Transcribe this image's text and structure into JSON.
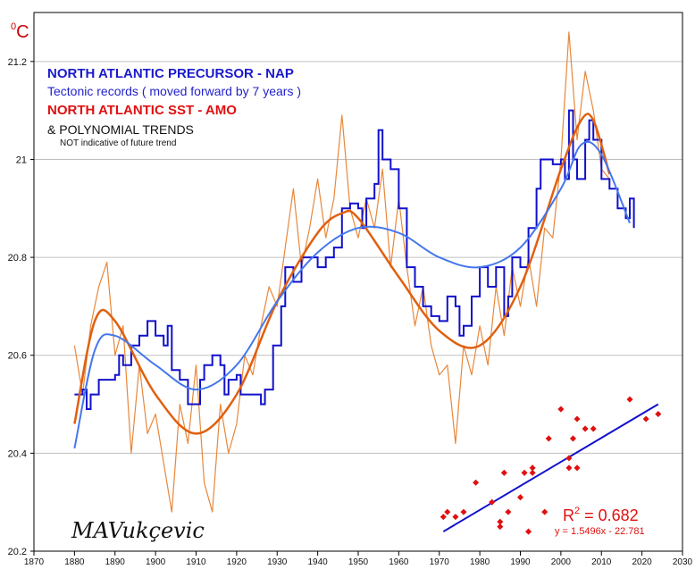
{
  "unit_label": {
    "sup": "0",
    "main": "C"
  },
  "legend": {
    "nap_title": "NORTH ATLANTIC PRECURSOR - NAP",
    "nap_subtitle": "Tectonic records ( moved forward by 7 years )",
    "amo_title": "NORTH ATLANTIC SST - AMO",
    "trends": "& POLYNOMIAL TRENDS",
    "trends_note": "NOT indicative of future trend"
  },
  "signature": "MAVukçevic",
  "regression": {
    "r2_prefix": "R",
    "r2_sup": "2",
    "r2_value": " = 0.682",
    "equation": "y = 1.5496x - 22.781"
  },
  "colors": {
    "nap": "#1010cc",
    "nap_trend": "#4477ee",
    "amo": "#e8873a",
    "amo_trend": "#e06010",
    "scatter": "#e01010",
    "fit_line": "#1010cc",
    "grid": "#c0c0c0"
  },
  "chart_data": {
    "type": "line",
    "xlim": [
      1870,
      2030
    ],
    "ylim": [
      20.2,
      21.3
    ],
    "grid": true,
    "x_ticks": [
      1870,
      1880,
      1890,
      1900,
      1910,
      1920,
      1930,
      1940,
      1950,
      1960,
      1970,
      1980,
      1990,
      2000,
      2010,
      2020,
      2030
    ],
    "y_ticks": [
      20.2,
      20.4,
      20.6,
      20.8,
      21.0,
      21.2
    ],
    "y_tick_labels": [
      "20.2",
      "20.4",
      "20.6",
      "20.8",
      "21",
      "21.2"
    ],
    "series": [
      {
        "name": "NORTH ATLANTIC PRECURSOR - NAP",
        "style": "step-line",
        "points": [
          [
            1880,
            20.52
          ],
          [
            1882,
            20.53
          ],
          [
            1883,
            20.49
          ],
          [
            1884,
            20.52
          ],
          [
            1886,
            20.55
          ],
          [
            1890,
            20.56
          ],
          [
            1891,
            20.6
          ],
          [
            1892,
            20.58
          ],
          [
            1894,
            20.62
          ],
          [
            1896,
            20.64
          ],
          [
            1898,
            20.67
          ],
          [
            1900,
            20.64
          ],
          [
            1902,
            20.62
          ],
          [
            1903,
            20.66
          ],
          [
            1904,
            20.57
          ],
          [
            1906,
            20.55
          ],
          [
            1908,
            20.5
          ],
          [
            1910,
            20.5
          ],
          [
            1911,
            20.55
          ],
          [
            1912,
            20.58
          ],
          [
            1914,
            20.6
          ],
          [
            1916,
            20.58
          ],
          [
            1917,
            20.52
          ],
          [
            1918,
            20.55
          ],
          [
            1920,
            20.56
          ],
          [
            1921,
            20.52
          ],
          [
            1924,
            20.52
          ],
          [
            1926,
            20.5
          ],
          [
            1927,
            20.53
          ],
          [
            1929,
            20.62
          ],
          [
            1931,
            20.7
          ],
          [
            1932,
            20.78
          ],
          [
            1934,
            20.75
          ],
          [
            1936,
            20.8
          ],
          [
            1938,
            20.8
          ],
          [
            1940,
            20.78
          ],
          [
            1942,
            20.8
          ],
          [
            1944,
            20.82
          ],
          [
            1946,
            20.9
          ],
          [
            1948,
            20.91
          ],
          [
            1950,
            20.9
          ],
          [
            1951,
            20.86
          ],
          [
            1952,
            20.92
          ],
          [
            1954,
            20.95
          ],
          [
            1955,
            21.06
          ],
          [
            1956,
            21.0
          ],
          [
            1958,
            20.98
          ],
          [
            1960,
            20.9
          ],
          [
            1962,
            20.78
          ],
          [
            1964,
            20.74
          ],
          [
            1966,
            20.7
          ],
          [
            1968,
            20.68
          ],
          [
            1970,
            20.67
          ],
          [
            1972,
            20.72
          ],
          [
            1974,
            20.7
          ],
          [
            1975,
            20.64
          ],
          [
            1976,
            20.66
          ],
          [
            1978,
            20.72
          ],
          [
            1980,
            20.78
          ],
          [
            1982,
            20.74
          ],
          [
            1984,
            20.78
          ],
          [
            1986,
            20.68
          ],
          [
            1987,
            20.72
          ],
          [
            1988,
            20.8
          ],
          [
            1990,
            20.78
          ],
          [
            1992,
            20.86
          ],
          [
            1994,
            20.94
          ],
          [
            1995,
            21.0
          ],
          [
            1998,
            20.99
          ],
          [
            2000,
            21.0
          ],
          [
            2001,
            20.96
          ],
          [
            2002,
            21.1
          ],
          [
            2003,
            21.0
          ],
          [
            2004,
            20.96
          ],
          [
            2006,
            21.04
          ],
          [
            2007,
            21.08
          ],
          [
            2008,
            21.04
          ],
          [
            2010,
            20.96
          ],
          [
            2012,
            20.94
          ],
          [
            2014,
            20.9
          ],
          [
            2016,
            20.88
          ],
          [
            2017,
            20.92
          ],
          [
            2018,
            20.86
          ]
        ]
      },
      {
        "name": "NORTH ATLANTIC SST - AMO",
        "style": "line",
        "points": [
          [
            1880,
            20.62
          ],
          [
            1882,
            20.52
          ],
          [
            1884,
            20.66
          ],
          [
            1886,
            20.74
          ],
          [
            1888,
            20.79
          ],
          [
            1890,
            20.6
          ],
          [
            1892,
            20.66
          ],
          [
            1894,
            20.4
          ],
          [
            1896,
            20.58
          ],
          [
            1898,
            20.44
          ],
          [
            1900,
            20.48
          ],
          [
            1902,
            20.38
          ],
          [
            1904,
            20.28
          ],
          [
            1906,
            20.5
          ],
          [
            1908,
            20.42
          ],
          [
            1910,
            20.58
          ],
          [
            1912,
            20.34
          ],
          [
            1914,
            20.28
          ],
          [
            1916,
            20.5
          ],
          [
            1918,
            20.4
          ],
          [
            1920,
            20.46
          ],
          [
            1922,
            20.6
          ],
          [
            1924,
            20.56
          ],
          [
            1926,
            20.66
          ],
          [
            1928,
            20.74
          ],
          [
            1930,
            20.7
          ],
          [
            1932,
            20.82
          ],
          [
            1934,
            20.94
          ],
          [
            1936,
            20.78
          ],
          [
            1938,
            20.86
          ],
          [
            1940,
            20.96
          ],
          [
            1942,
            20.84
          ],
          [
            1944,
            20.92
          ],
          [
            1946,
            21.09
          ],
          [
            1948,
            20.9
          ],
          [
            1950,
            20.84
          ],
          [
            1952,
            20.92
          ],
          [
            1954,
            20.86
          ],
          [
            1956,
            20.98
          ],
          [
            1958,
            20.78
          ],
          [
            1960,
            20.92
          ],
          [
            1962,
            20.78
          ],
          [
            1964,
            20.66
          ],
          [
            1966,
            20.74
          ],
          [
            1968,
            20.62
          ],
          [
            1970,
            20.56
          ],
          [
            1972,
            20.58
          ],
          [
            1974,
            20.42
          ],
          [
            1976,
            20.62
          ],
          [
            1978,
            20.56
          ],
          [
            1980,
            20.66
          ],
          [
            1982,
            20.58
          ],
          [
            1984,
            20.74
          ],
          [
            1986,
            20.64
          ],
          [
            1988,
            20.78
          ],
          [
            1990,
            20.7
          ],
          [
            1992,
            20.8
          ],
          [
            1994,
            20.7
          ],
          [
            1996,
            20.86
          ],
          [
            1998,
            20.84
          ],
          [
            2000,
            21.0
          ],
          [
            2002,
            21.26
          ],
          [
            2004,
            21.04
          ],
          [
            2006,
            21.18
          ],
          [
            2008,
            21.1
          ],
          [
            2010,
            20.98
          ],
          [
            2012,
            20.96
          ]
        ]
      }
    ],
    "trends": [
      {
        "of": "NAP",
        "points": [
          [
            1880,
            20.41
          ],
          [
            1885,
            20.61
          ],
          [
            1890,
            20.64
          ],
          [
            1900,
            20.58
          ],
          [
            1910,
            20.53
          ],
          [
            1920,
            20.58
          ],
          [
            1930,
            20.71
          ],
          [
            1940,
            20.81
          ],
          [
            1950,
            20.86
          ],
          [
            1960,
            20.85
          ],
          [
            1970,
            20.8
          ],
          [
            1980,
            20.78
          ],
          [
            1990,
            20.82
          ],
          [
            2000,
            20.94
          ],
          [
            2005,
            21.03
          ],
          [
            2010,
            21.01
          ],
          [
            2017,
            20.87
          ]
        ]
      },
      {
        "of": "AMO",
        "points": [
          [
            1880,
            20.46
          ],
          [
            1885,
            20.67
          ],
          [
            1890,
            20.67
          ],
          [
            1900,
            20.52
          ],
          [
            1910,
            20.44
          ],
          [
            1920,
            20.52
          ],
          [
            1930,
            20.71
          ],
          [
            1940,
            20.85
          ],
          [
            1946,
            20.89
          ],
          [
            1950,
            20.88
          ],
          [
            1960,
            20.76
          ],
          [
            1970,
            20.65
          ],
          [
            1980,
            20.62
          ],
          [
            1990,
            20.74
          ],
          [
            2000,
            20.98
          ],
          [
            2005,
            21.08
          ],
          [
            2008,
            21.08
          ],
          [
            2012,
            20.97
          ]
        ]
      }
    ],
    "scatter": {
      "points": [
        [
          1971,
          20.27
        ],
        [
          1972,
          20.28
        ],
        [
          1974,
          20.27
        ],
        [
          1976,
          20.28
        ],
        [
          1979,
          20.34
        ],
        [
          1983,
          20.3
        ],
        [
          1985,
          20.26
        ],
        [
          1985,
          20.25
        ],
        [
          1986,
          20.36
        ],
        [
          1987,
          20.28
        ],
        [
          1990,
          20.31
        ],
        [
          1991,
          20.36
        ],
        [
          1992,
          20.24
        ],
        [
          1993,
          20.36
        ],
        [
          1993,
          20.37
        ],
        [
          1996,
          20.28
        ],
        [
          1997,
          20.43
        ],
        [
          2000,
          20.49
        ],
        [
          2002,
          20.37
        ],
        [
          2002,
          20.39
        ],
        [
          2003,
          20.43
        ],
        [
          2004,
          20.47
        ],
        [
          2004,
          20.37
        ],
        [
          2006,
          20.45
        ],
        [
          2008,
          20.45
        ],
        [
          2017,
          20.51
        ],
        [
          2021,
          20.47
        ],
        [
          2024,
          20.48
        ]
      ],
      "fit": [
        [
          1971,
          20.24
        ],
        [
          2024,
          20.5
        ]
      ]
    }
  }
}
